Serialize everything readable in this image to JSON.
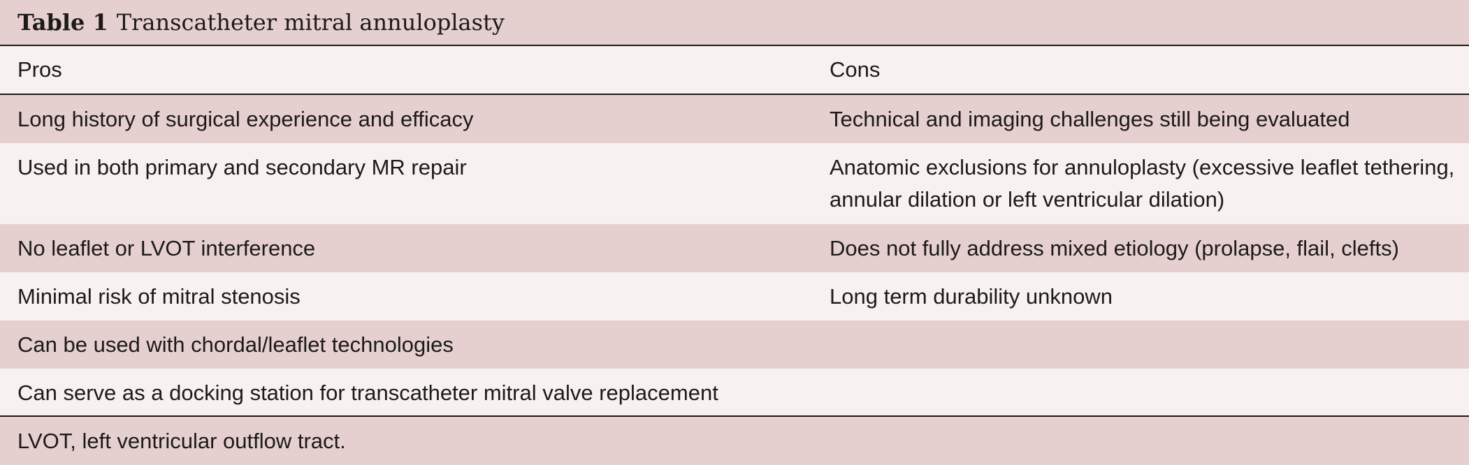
{
  "caption": {
    "number": "Table 1",
    "title": "Transcatheter mitral annuloplasty"
  },
  "headers": {
    "pros": "Pros",
    "cons": "Cons"
  },
  "rows": [
    {
      "pro": "Long history of surgical experience and efficacy",
      "con": "Technical and imaging challenges still being evaluated"
    },
    {
      "pro": "Used in both primary and secondary MR repair",
      "con": "Anatomic exclusions for annuloplasty (excessive leaflet tethering, annular dilation or left ventricular dilation)"
    },
    {
      "pro": "No leaflet or LVOT interference",
      "con": "Does not fully address mixed etiology (prolapse, flail, clefts)"
    },
    {
      "pro": "Minimal risk of mitral stenosis",
      "con": "Long term durability unknown"
    },
    {
      "pro": "Can be used with chordal/leaflet technologies",
      "con": ""
    },
    {
      "pro": "Can serve as a docking station for transcatheter mitral valve replacement",
      "con": ""
    }
  ],
  "footnote": "LVOT, left ventricular outflow tract.",
  "colors": {
    "shaded_row": "#e6cfcf",
    "light_row": "#f7f2ef",
    "rule": "#1a1a1a"
  }
}
